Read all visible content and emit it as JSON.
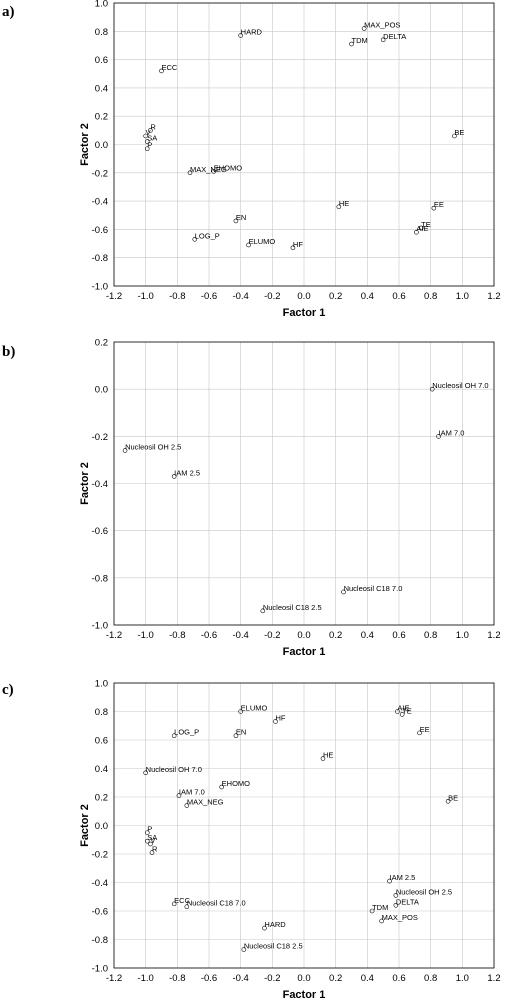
{
  "chart_data": [
    {
      "type": "scatter",
      "panel_label": "a)",
      "xlabel": "Factor 1",
      "ylabel": "Factor 2",
      "xlim": [
        -1.2,
        1.2
      ],
      "ylim": [
        -1.0,
        1.0
      ],
      "grid": true,
      "xticks": [
        "-1.2",
        "-1.0",
        "-0.8",
        "-0.6",
        "-0.4",
        "-0.2",
        "0.0",
        "0.2",
        "0.4",
        "0.6",
        "0.8",
        "1.0",
        "1.2"
      ],
      "yticks": [
        "-1.0",
        "-0.8",
        "-0.6",
        "-0.4",
        "-0.2",
        "0.0",
        "0.2",
        "0.4",
        "0.6",
        "0.8",
        "1.0"
      ],
      "points": [
        {
          "label": "HARD",
          "x": -0.4,
          "y": 0.77
        },
        {
          "label": "MAX_POS",
          "x": 0.38,
          "y": 0.82
        },
        {
          "label": "TDM",
          "x": 0.3,
          "y": 0.71
        },
        {
          "label": "DELTA",
          "x": 0.5,
          "y": 0.74
        },
        {
          "label": "ECC",
          "x": -0.9,
          "y": 0.52
        },
        {
          "label": "R",
          "x": -0.97,
          "y": 0.1
        },
        {
          "label": "V",
          "x": -1.0,
          "y": 0.06
        },
        {
          "label": "SA",
          "x": -0.99,
          "y": 0.02
        },
        {
          "label": "P",
          "x": -0.99,
          "y": -0.03
        },
        {
          "label": "BE",
          "x": 0.95,
          "y": 0.06
        },
        {
          "label": "MAX_NEG",
          "x": -0.72,
          "y": -0.2
        },
        {
          "label": "EHOMO",
          "x": -0.57,
          "y": -0.19
        },
        {
          "label": "HE",
          "x": 0.22,
          "y": -0.44
        },
        {
          "label": "EE",
          "x": 0.82,
          "y": -0.45
        },
        {
          "label": "EN",
          "x": -0.43,
          "y": -0.54
        },
        {
          "label": "TE",
          "x": 0.74,
          "y": -0.59
        },
        {
          "label": "AIE",
          "x": 0.71,
          "y": -0.62
        },
        {
          "label": "LOG_P",
          "x": -0.69,
          "y": -0.67
        },
        {
          "label": "ELUMO",
          "x": -0.35,
          "y": -0.71
        },
        {
          "label": "HF",
          "x": -0.07,
          "y": -0.73
        }
      ]
    },
    {
      "type": "scatter",
      "panel_label": "b)",
      "xlabel": "Factor 1",
      "ylabel": "Factor 2",
      "xlim": [
        -1.2,
        1.2
      ],
      "ylim": [
        -1.0,
        0.2
      ],
      "grid": true,
      "xticks": [
        "-1.2",
        "-1.0",
        "-0.8",
        "-0.6",
        "-0.4",
        "-0.2",
        "0.0",
        "0.2",
        "0.4",
        "0.6",
        "0.8",
        "1.0",
        "1.2"
      ],
      "yticks": [
        "-1.0",
        "-0.8",
        "-0.6",
        "-0.4",
        "-0.2",
        "0.0",
        "0.2"
      ],
      "points": [
        {
          "label": "Nucleosil OH 7.0",
          "x": 0.81,
          "y": 0.0
        },
        {
          "label": "IAM 7.0",
          "x": 0.85,
          "y": -0.2
        },
        {
          "label": "Nucleosil OH 2.5",
          "x": -1.13,
          "y": -0.26
        },
        {
          "label": "IAM 2.5",
          "x": -0.82,
          "y": -0.37
        },
        {
          "label": "Nucleosil C18 7.0",
          "x": 0.25,
          "y": -0.86
        },
        {
          "label": "Nucleosil C18 2.5",
          "x": -0.26,
          "y": -0.94
        }
      ]
    },
    {
      "type": "scatter",
      "panel_label": "c)",
      "xlabel": "Factor 1",
      "ylabel": "Factor 2",
      "xlim": [
        -1.2,
        1.2
      ],
      "ylim": [
        -1.0,
        1.0
      ],
      "grid": true,
      "xticks": [
        "-1.2",
        "-1.0",
        "-0.8",
        "-0.6",
        "-0.4",
        "-0.2",
        "0.0",
        "0.2",
        "0.4",
        "0.6",
        "0.8",
        "1.0",
        "1.2"
      ],
      "yticks": [
        "-1.0",
        "-0.8",
        "-0.6",
        "-0.4",
        "-0.2",
        "0.0",
        "0.2",
        "0.4",
        "0.6",
        "0.8",
        "1.0"
      ],
      "points": [
        {
          "label": "ELUMO",
          "x": -0.4,
          "y": 0.8
        },
        {
          "label": "AIE",
          "x": 0.59,
          "y": 0.8
        },
        {
          "label": "TE",
          "x": 0.62,
          "y": 0.78
        },
        {
          "label": "HF",
          "x": -0.18,
          "y": 0.73
        },
        {
          "label": "LOG_P",
          "x": -0.82,
          "y": 0.63
        },
        {
          "label": "EN",
          "x": -0.43,
          "y": 0.63
        },
        {
          "label": "EE",
          "x": 0.73,
          "y": 0.65
        },
        {
          "label": "HE",
          "x": 0.12,
          "y": 0.47
        },
        {
          "label": "Nucleosil OH 7.0",
          "x": -1.0,
          "y": 0.37
        },
        {
          "label": "EHOMO",
          "x": -0.52,
          "y": 0.27
        },
        {
          "label": "IAM 7.0",
          "x": -0.79,
          "y": 0.21
        },
        {
          "label": "MAX_NEG",
          "x": -0.74,
          "y": 0.14
        },
        {
          "label": "BE",
          "x": 0.91,
          "y": 0.17
        },
        {
          "label": "P",
          "x": -0.99,
          "y": -0.05
        },
        {
          "label": "SA",
          "x": -0.99,
          "y": -0.11
        },
        {
          "label": "V",
          "x": -0.97,
          "y": -0.13
        },
        {
          "label": "R",
          "x": -0.96,
          "y": -0.19
        },
        {
          "label": "IAM 2.5",
          "x": 0.54,
          "y": -0.39
        },
        {
          "label": "Nucleosil OH 2.5",
          "x": 0.58,
          "y": -0.49
        },
        {
          "label": "ECC",
          "x": -0.82,
          "y": -0.55
        },
        {
          "label": "Nucleosil C18 7.0",
          "x": -0.74,
          "y": -0.57
        },
        {
          "label": "DELTA",
          "x": 0.58,
          "y": -0.56
        },
        {
          "label": "TDM",
          "x": 0.43,
          "y": -0.6
        },
        {
          "label": "MAX_POS",
          "x": 0.49,
          "y": -0.67
        },
        {
          "label": "HARD",
          "x": -0.25,
          "y": -0.72
        },
        {
          "label": "Nucleosil C18 2.5",
          "x": -0.38,
          "y": -0.87
        }
      ]
    }
  ]
}
